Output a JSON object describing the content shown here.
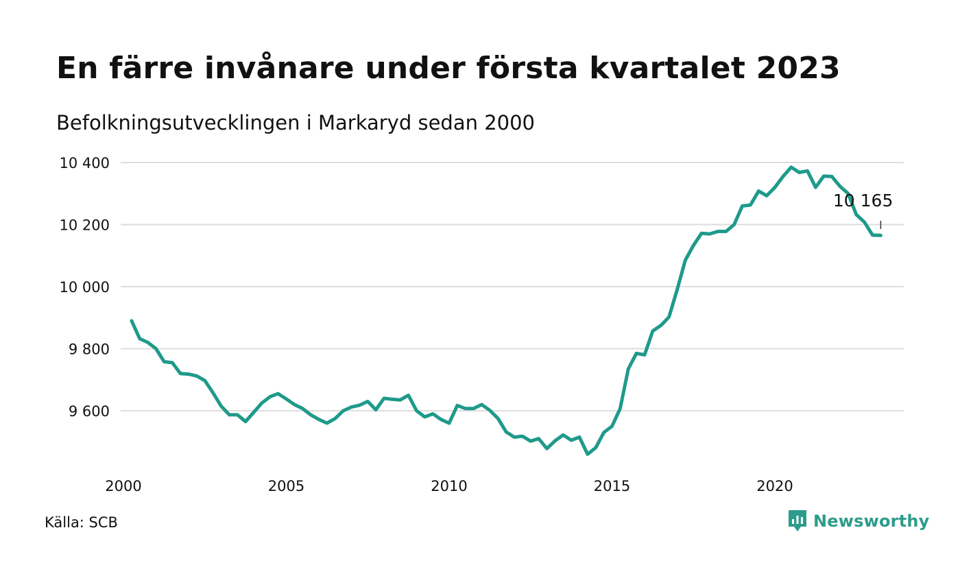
{
  "title": "En färre invånare under första kvartalet 2023",
  "subtitle": "Befolkningsutvecklingen i Markaryd sedan 2000",
  "source": "Källa: SCB",
  "brand": "Newsworthy",
  "colors": {
    "line": "#1f9a8a",
    "grid": "#dddddd",
    "text": "#111111",
    "brand": "#2c9c8c"
  },
  "chart_data": {
    "type": "line",
    "title": "En färre invånare under första kvartalet 2023",
    "subtitle": "Befolkningsutvecklingen i Markaryd sedan 2000",
    "xlabel": "",
    "ylabel": "",
    "xlim": [
      2000,
      2023.75
    ],
    "ylim": [
      9440,
      10400
    ],
    "yticks": [
      9600,
      9800,
      10000,
      10200,
      10400
    ],
    "ytick_labels": [
      "9 600",
      "9 800",
      "10 000",
      "10 200",
      "10 400"
    ],
    "xticks": [
      2000,
      2005,
      2010,
      2015,
      2020
    ],
    "xtick_labels": [
      "2000",
      "2005",
      "2010",
      "2015",
      "2020"
    ],
    "grid": true,
    "end_label": "10 165",
    "x": [
      2000.25,
      2000.5,
      2000.75,
      2001,
      2001.25,
      2001.5,
      2001.75,
      2002,
      2002.25,
      2002.5,
      2002.75,
      2003,
      2003.25,
      2003.5,
      2003.75,
      2004,
      2004.25,
      2004.5,
      2004.75,
      2005,
      2005.25,
      2005.5,
      2005.75,
      2006,
      2006.25,
      2006.5,
      2006.75,
      2007,
      2007.25,
      2007.5,
      2007.75,
      2008,
      2008.25,
      2008.5,
      2008.75,
      2009,
      2009.25,
      2009.5,
      2009.75,
      2010,
      2010.25,
      2010.5,
      2010.75,
      2011,
      2011.25,
      2011.5,
      2011.75,
      2012,
      2012.25,
      2012.5,
      2012.75,
      2013,
      2013.25,
      2013.5,
      2013.75,
      2014,
      2014.25,
      2014.5,
      2014.75,
      2015,
      2015.25,
      2015.5,
      2015.75,
      2016,
      2016.25,
      2016.5,
      2016.75,
      2017,
      2017.25,
      2017.5,
      2017.75,
      2018,
      2018.25,
      2018.5,
      2018.75,
      2019,
      2019.25,
      2019.5,
      2019.75,
      2020,
      2020.25,
      2020.5,
      2020.75,
      2021,
      2021.25,
      2021.5,
      2021.75,
      2022,
      2022.25,
      2022.5,
      2022.75,
      2023,
      2023.25
    ],
    "series": [
      {
        "values": [
          9890,
          9832,
          9820,
          9800,
          9758,
          9755,
          9720,
          9718,
          9712,
          9697,
          9658,
          9615,
          9587,
          9587,
          9565,
          9595,
          9625,
          9645,
          9655,
          9638,
          9620,
          9607,
          9587,
          9572,
          9560,
          9575,
          9600,
          9612,
          9618,
          9630,
          9603,
          9640,
          9637,
          9635,
          9650,
          9600,
          9580,
          9590,
          9572,
          9560,
          9617,
          9607,
          9607,
          9620,
          9601,
          9575,
          9532,
          9515,
          9518,
          9502,
          9510,
          9478,
          9503,
          9522,
          9505,
          9515,
          9460,
          9481,
          9530,
          9550,
          9607,
          9735,
          9785,
          9780,
          9857,
          9875,
          9902,
          9990,
          10085,
          10133,
          10172,
          10170,
          10178,
          10178,
          10200,
          10260,
          10263,
          10308,
          10293,
          10320,
          10355,
          10385,
          10368,
          10373,
          10320,
          10356,
          10355,
          10323,
          10300,
          10232,
          10208,
          10166,
          10165
        ]
      }
    ]
  }
}
